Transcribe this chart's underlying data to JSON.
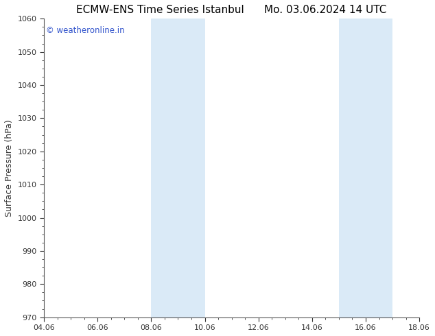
{
  "title_left": "ECMW-ENS Time Series Istanbul",
  "title_right": "Mo. 03.06.2024 14 UTC",
  "ylabel": "Surface Pressure (hPa)",
  "ylim": [
    970,
    1060
  ],
  "yticks": [
    970,
    980,
    990,
    1000,
    1010,
    1020,
    1030,
    1040,
    1050,
    1060
  ],
  "xlim_start": 0,
  "xlim_end": 14,
  "xtick_labels": [
    "04.06",
    "06.06",
    "08.06",
    "10.06",
    "12.06",
    "14.06",
    "16.06",
    "18.06"
  ],
  "xtick_positions": [
    0,
    2,
    4,
    6,
    8,
    10,
    12,
    14
  ],
  "shaded_bands": [
    {
      "x_start": 4,
      "x_end": 6
    },
    {
      "x_start": 11,
      "x_end": 13
    }
  ],
  "shaded_color": "#daeaf7",
  "background_color": "#ffffff",
  "plot_bg_color": "#ffffff",
  "watermark_text": "© weatheronline.in",
  "watermark_color": "#3355cc",
  "watermark_fontsize": 8.5,
  "title_fontsize": 11,
  "tick_label_fontsize": 8,
  "ylabel_fontsize": 9,
  "spine_color": "#555555",
  "tick_color": "#333333"
}
